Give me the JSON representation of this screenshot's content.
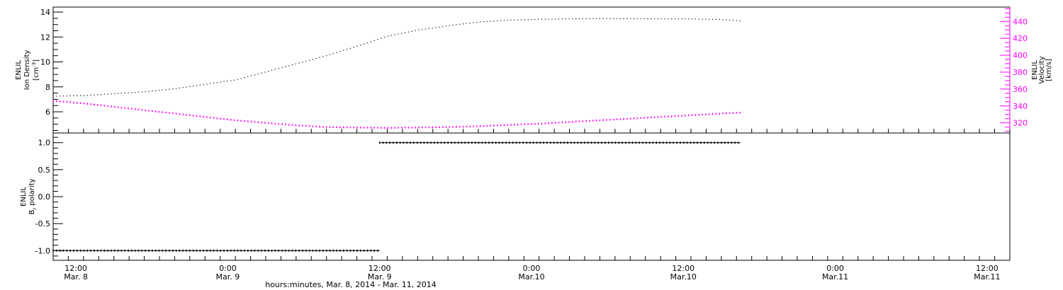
{
  "chart_data": [
    {
      "type": "scatter",
      "panel": "top",
      "ylabel_line1": "ENLIL",
      "ylabel_line2": "Ion Density",
      "ylabel_units": "[cm",
      "ylabel_units_exp": "-3",
      "ylabel_units_close": "]",
      "ylim": [
        4.3,
        14.4
      ],
      "yticks": [
        6,
        8,
        10,
        12,
        14
      ],
      "ytick_labels": [
        "6",
        "8",
        "10",
        "12",
        "14"
      ],
      "y2label_line1": "ENLIL",
      "y2label_line2": "Velocity",
      "y2label_units": "[km/s]",
      "y2lim": [
        308,
        457
      ],
      "y2ticks": [
        320,
        340,
        360,
        380,
        400,
        420,
        440
      ],
      "y2tick_labels": [
        "320",
        "340",
        "360",
        "380",
        "400",
        "420",
        "440"
      ],
      "y2_color": "#ff00ff",
      "series": [
        {
          "axis": "left",
          "color": "#000000",
          "x_hours": [
            0,
            4,
            8,
            12,
            16,
            20,
            24,
            28,
            32,
            36,
            40,
            44,
            48,
            52,
            56,
            60,
            64,
            68,
            72,
            76,
            80,
            84,
            88,
            90.5
          ],
          "y": [
            7.25,
            7.3,
            7.45,
            7.6,
            7.85,
            8.2,
            8.55,
            9.2,
            9.85,
            10.5,
            11.25,
            12.05,
            12.55,
            12.9,
            13.2,
            13.35,
            13.42,
            13.46,
            13.48,
            13.47,
            13.46,
            13.45,
            13.4,
            13.3
          ]
        },
        {
          "axis": "right",
          "color": "#ff00ff",
          "x_hours": [
            0,
            4,
            8,
            12,
            16,
            20,
            24,
            28,
            32,
            36,
            40,
            44,
            48,
            52,
            56,
            60,
            64,
            68,
            72,
            76,
            80,
            84,
            88,
            90.5
          ],
          "y": [
            346,
            343,
            339,
            335,
            331,
            327,
            323,
            320,
            317,
            315,
            314.5,
            314,
            314.5,
            315,
            316,
            317.5,
            319,
            321,
            323,
            325,
            327,
            329,
            331,
            332
          ]
        }
      ]
    },
    {
      "type": "scatter",
      "panel": "bottom",
      "ylabel_line1": "ENLIL",
      "ylabel_line2": "B",
      "ylabel_line2_sub": "r",
      "ylabel_line2_rest": " polarity",
      "ylim": [
        -1.18,
        1.18
      ],
      "yticks": [
        -1.0,
        -0.5,
        0.0,
        0.5,
        1.0
      ],
      "ytick_labels": [
        "-1.0",
        "-0.5",
        "0.0",
        "0.5",
        "1.0"
      ],
      "series": [
        {
          "color": "#000000",
          "segments": [
            {
              "x_start_hours": 0,
              "x_end_hours": 43,
              "y": -1.0
            },
            {
              "x_start_hours": 43,
              "x_end_hours": 90.5,
              "y": 1.0
            }
          ]
        }
      ]
    }
  ],
  "x_axis": {
    "xlim_hours": [
      0,
      126
    ],
    "ticks": [
      {
        "hour": 3,
        "time": "12:00",
        "date": "Mar. 8"
      },
      {
        "hour": 23,
        "time": "0:00",
        "date": "Mar. 9"
      },
      {
        "hour": 43,
        "time": "12:00",
        "date": "Mar. 9"
      },
      {
        "hour": 63,
        "time": "0:00",
        "date": "Mar.10"
      },
      {
        "hour": 83,
        "time": "12:00",
        "date": "Mar.10"
      },
      {
        "hour": 103,
        "time": "0:00",
        "date": "Mar.11"
      },
      {
        "hour": 123,
        "time": "12:00",
        "date": "Mar.11"
      }
    ],
    "title": "hours:minutes, Mar.  8, 2014 - Mar. 11, 2014"
  }
}
